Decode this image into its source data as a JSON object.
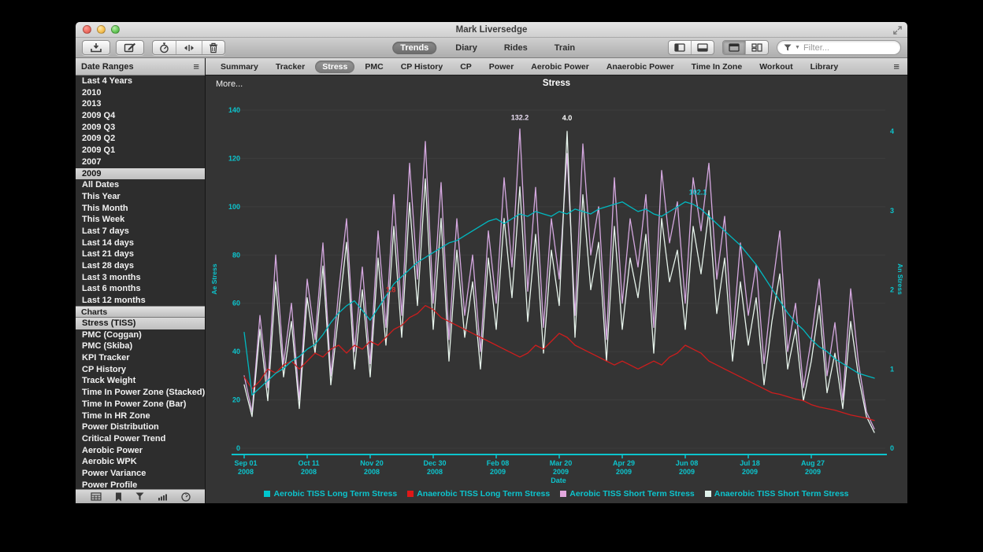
{
  "window": {
    "title": "Mark Liversedge"
  },
  "toolbar": {
    "nav": [
      {
        "label": "Trends",
        "selected": true
      },
      {
        "label": "Diary",
        "selected": false
      },
      {
        "label": "Rides",
        "selected": false
      },
      {
        "label": "Train",
        "selected": false
      }
    ],
    "filter_placeholder": "Filter..."
  },
  "sidebar": {
    "date_ranges_header": "Date Ranges",
    "date_ranges": [
      {
        "label": "Last 4 Years"
      },
      {
        "label": "2010"
      },
      {
        "label": "2013"
      },
      {
        "label": "2009 Q4"
      },
      {
        "label": "2009 Q3"
      },
      {
        "label": "2009 Q2"
      },
      {
        "label": "2009 Q1"
      },
      {
        "label": "2007"
      },
      {
        "label": "2009",
        "selected": true
      },
      {
        "label": "All Dates"
      },
      {
        "label": "This Year"
      },
      {
        "label": "This Month"
      },
      {
        "label": "This Week"
      },
      {
        "label": "Last 7 days"
      },
      {
        "label": "Last 14 days"
      },
      {
        "label": "Last 21 days"
      },
      {
        "label": "Last 28 days"
      },
      {
        "label": "Last 3 months"
      },
      {
        "label": "Last 6 months"
      },
      {
        "label": "Last 12 months"
      }
    ],
    "charts_header": "Charts",
    "charts": [
      {
        "label": "Stress (TISS)",
        "selected": true
      },
      {
        "label": "PMC (Coggan)"
      },
      {
        "label": "PMC (Skiba)"
      },
      {
        "label": "KPI Tracker"
      },
      {
        "label": "CP History"
      },
      {
        "label": "Track Weight"
      },
      {
        "label": "Time In Power Zone (Stacked)"
      },
      {
        "label": "Time In Power Zone (Bar)"
      },
      {
        "label": "Time In HR Zone"
      },
      {
        "label": "Power Distribution"
      },
      {
        "label": "Critical Power Trend"
      },
      {
        "label": "Aerobic Power"
      },
      {
        "label": "Aerobic WPK"
      },
      {
        "label": "Power Variance"
      },
      {
        "label": "Power Profile"
      }
    ]
  },
  "tabs": [
    {
      "label": "Summary"
    },
    {
      "label": "Tracker"
    },
    {
      "label": "Stress",
      "selected": true
    },
    {
      "label": "PMC"
    },
    {
      "label": "CP History"
    },
    {
      "label": "CP"
    },
    {
      "label": "Power"
    },
    {
      "label": "Aerobic Power"
    },
    {
      "label": "Anaerobic Power"
    },
    {
      "label": "Time In Zone"
    },
    {
      "label": "Workout"
    },
    {
      "label": "Library"
    }
  ],
  "chart": {
    "more_label": "More...",
    "title": "Stress"
  },
  "chart_data": {
    "type": "line",
    "title": "Stress",
    "xlabel": "Date",
    "axis_color": "#0cc4cd",
    "grid_color": "#3d3d3d",
    "x_domain": [
      -8,
      407
    ],
    "x_ticks": [
      {
        "pos": 0,
        "line1": "Sep 01",
        "line2": "2008"
      },
      {
        "pos": 40,
        "line1": "Oct 11",
        "line2": "2008"
      },
      {
        "pos": 80,
        "line1": "Nov 20",
        "line2": "2008"
      },
      {
        "pos": 120,
        "line1": "Dec 30",
        "line2": "2008"
      },
      {
        "pos": 160,
        "line1": "Feb 08",
        "line2": "2009"
      },
      {
        "pos": 200,
        "line1": "Mar 20",
        "line2": "2009"
      },
      {
        "pos": 240,
        "line1": "Apr 29",
        "line2": "2009"
      },
      {
        "pos": 280,
        "line1": "Jun 08",
        "line2": "2009"
      },
      {
        "pos": 320,
        "line1": "Jul 18",
        "line2": "2009"
      },
      {
        "pos": 360,
        "line1": "Aug 27",
        "line2": "2009"
      }
    ],
    "left_axis": {
      "label": "Ae Stress",
      "range": [
        0,
        140
      ],
      "tick_step": 20
    },
    "right_axis": {
      "label": "An Stress",
      "range": [
        0,
        4
      ],
      "tick_step": 1
    },
    "series": [
      {
        "name": "Aerobic TISS Short Term Stress",
        "axis": "left",
        "color": "#d5a8e0",
        "x_start": 0,
        "x_step": 5,
        "values": [
          30,
          15,
          55,
          25,
          80,
          35,
          60,
          20,
          70,
          45,
          85,
          30,
          65,
          95,
          40,
          75,
          35,
          90,
          50,
          105,
          55,
          118,
          70,
          127,
          60,
          110,
          45,
          95,
          55,
          80,
          40,
          90,
          60,
          112,
          75,
          132.2,
          65,
          108,
          50,
          95,
          70,
          122,
          55,
          126,
          80,
          100,
          45,
          112,
          60,
          95,
          75,
          105,
          50,
          115,
          85,
          102,
          60,
          112,
          90,
          118,
          70,
          96,
          45,
          85,
          55,
          76,
          35,
          65,
          90,
          40,
          60,
          25,
          45,
          70,
          30,
          52,
          20,
          66,
          35,
          15,
          8
        ]
      },
      {
        "name": "Anaerobic TISS Short Term Stress",
        "axis": "right",
        "color": "#e7f4ec",
        "x_start": 0,
        "x_step": 5,
        "values": [
          0.8,
          0.4,
          1.5,
          0.6,
          2.1,
          0.9,
          1.6,
          0.5,
          1.9,
          1.2,
          2.3,
          0.8,
          1.7,
          2.6,
          1.0,
          2.0,
          0.9,
          2.4,
          1.3,
          2.8,
          1.4,
          3.1,
          1.8,
          3.4,
          1.5,
          2.9,
          1.1,
          2.5,
          1.4,
          2.1,
          1.0,
          2.4,
          1.5,
          2.9,
          1.9,
          3.3,
          1.6,
          2.7,
          1.2,
          2.5,
          1.8,
          4.0,
          1.4,
          3.2,
          2.0,
          2.6,
          1.1,
          2.8,
          1.5,
          2.4,
          1.9,
          2.7,
          1.2,
          2.9,
          2.1,
          2.5,
          1.5,
          2.8,
          2.2,
          3.0,
          1.7,
          2.4,
          1.1,
          2.1,
          1.3,
          1.9,
          0.8,
          1.6,
          2.2,
          1.0,
          1.5,
          0.6,
          1.1,
          1.8,
          0.7,
          1.2,
          0.5,
          1.6,
          0.9,
          0.4,
          0.2
        ]
      },
      {
        "name": "Anaerobic TISS Long Term Stress",
        "axis": "right",
        "color": "#cf1d1d",
        "x_start": 0,
        "x_step": 5,
        "values": [
          0.9,
          0.75,
          0.85,
          1.0,
          0.95,
          1.05,
          1.1,
          1.0,
          1.1,
          1.2,
          1.15,
          1.25,
          1.3,
          1.2,
          1.3,
          1.25,
          1.35,
          1.3,
          1.4,
          1.5,
          1.55,
          1.65,
          1.7,
          1.8,
          1.75,
          1.65,
          1.6,
          1.55,
          1.5,
          1.45,
          1.4,
          1.35,
          1.3,
          1.25,
          1.2,
          1.15,
          1.2,
          1.3,
          1.25,
          1.35,
          1.45,
          1.4,
          1.3,
          1.25,
          1.2,
          1.15,
          1.1,
          1.05,
          1.1,
          1.05,
          1.0,
          1.05,
          1.1,
          1.05,
          1.15,
          1.2,
          1.3,
          1.25,
          1.2,
          1.1,
          1.05,
          1.0,
          0.95,
          0.9,
          0.85,
          0.8,
          0.75,
          0.7,
          0.68,
          0.65,
          0.62,
          0.6,
          0.55,
          0.52,
          0.5,
          0.48,
          0.45,
          0.42,
          0.4,
          0.38,
          0.35
        ]
      },
      {
        "name": "Aerobic TISS Long Term Stress",
        "axis": "left",
        "color": "#00b9c1",
        "x_start": 0,
        "x_step": 5,
        "values": [
          48,
          22,
          25,
          28,
          31,
          33,
          36,
          38,
          41,
          43,
          47,
          52,
          56,
          59,
          61,
          57,
          53,
          58,
          63,
          68,
          71,
          74,
          77,
          79,
          81,
          83,
          85,
          86,
          88,
          90,
          92,
          94,
          95,
          93,
          95,
          97,
          96,
          98,
          97,
          96,
          98,
          97,
          99,
          98,
          97,
          99,
          100,
          101,
          102,
          100,
          98,
          99,
          97,
          96,
          98,
          100,
          102,
          101,
          99,
          96,
          93,
          90,
          87,
          84,
          80,
          76,
          71,
          66,
          61,
          56,
          52,
          49,
          45,
          42,
          40,
          37,
          35,
          33,
          31,
          30,
          29
        ]
      }
    ],
    "annotations": [
      {
        "text": "132.2",
        "day": 175,
        "axis": "left",
        "y_value": 136,
        "color": "#e9ddf2"
      },
      {
        "text": "4.0",
        "day": 205,
        "axis": "right",
        "y_value": 4.14,
        "color": "#ffffff"
      },
      {
        "text": "1.8",
        "day": 93,
        "axis": "right",
        "y_value": 1.97,
        "color": "#d83030"
      },
      {
        "text": "102.1",
        "day": 288,
        "axis": "left",
        "y_value": 105,
        "color": "#0cc4cd"
      }
    ],
    "legend": [
      {
        "label": "Aerobic TISS Long Term Stress",
        "color": "#00c6ce"
      },
      {
        "label": "Anaerobic TISS Long Term Stress",
        "color": "#e01818"
      },
      {
        "label": "Aerobic TISS Short Term Stress",
        "color": "#e2a6dd"
      },
      {
        "label": "Anaerobic TISS Short Term Stress",
        "color": "#dff1ea"
      }
    ]
  }
}
